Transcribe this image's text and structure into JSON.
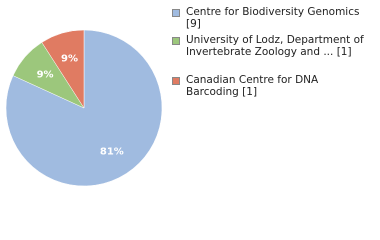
{
  "chart_data": {
    "type": "pie",
    "categories": [
      "Centre for Biodiversity Genomics [9]",
      "University of Lodz, Department of Invertebrate Zoology and ... [1]",
      "Canadian Centre for DNA Barcoding [1]"
    ],
    "values": [
      81,
      9,
      9
    ],
    "value_labels": [
      "81%",
      "9%",
      "9%"
    ],
    "colors": [
      "#a0bbe0",
      "#9cc77c",
      "#e07b62"
    ]
  }
}
